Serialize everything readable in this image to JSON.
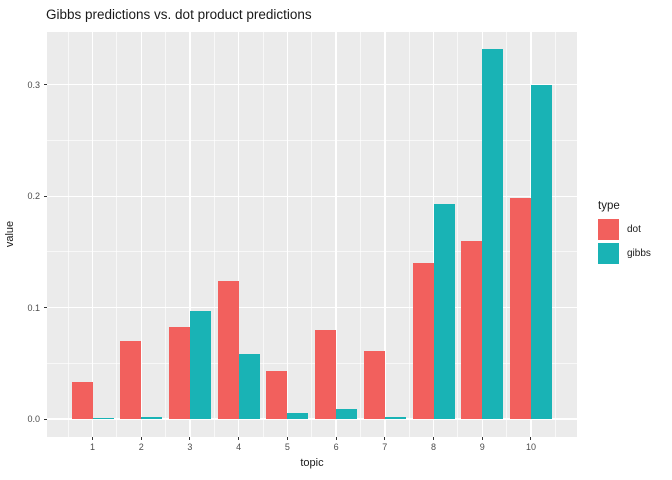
{
  "chart_data": {
    "type": "bar",
    "title": "Gibbs predictions vs. dot product predictions",
    "xlabel": "topic",
    "ylabel": "value",
    "categories": [
      "1",
      "2",
      "3",
      "4",
      "5",
      "6",
      "7",
      "8",
      "9",
      "10"
    ],
    "series": [
      {
        "name": "dot",
        "color": "#f2605d",
        "values": [
          0.033,
          0.07,
          0.083,
          0.124,
          0.043,
          0.08,
          0.061,
          0.14,
          0.16,
          0.198
        ]
      },
      {
        "name": "gibbs",
        "color": "#19b3b5",
        "values": [
          0.001,
          0.002,
          0.097,
          0.058,
          0.005,
          0.009,
          0.002,
          0.193,
          0.332,
          0.3
        ]
      }
    ],
    "ylim": [
      0,
      0.35
    ],
    "yticks": {
      "values": [
        0,
        0.1,
        0.2,
        0.3
      ],
      "labels": [
        "0.0",
        "0.1",
        "0.2",
        "0.3"
      ]
    },
    "yminor": [
      0.05,
      0.15,
      0.25
    ],
    "grid": true,
    "legend": {
      "title": "type",
      "position": "right",
      "entries": [
        "dot",
        "gibbs"
      ]
    },
    "panel_bg": "#ebebeb",
    "grid_color": "#ffffff",
    "bar_layout": "dodge"
  }
}
